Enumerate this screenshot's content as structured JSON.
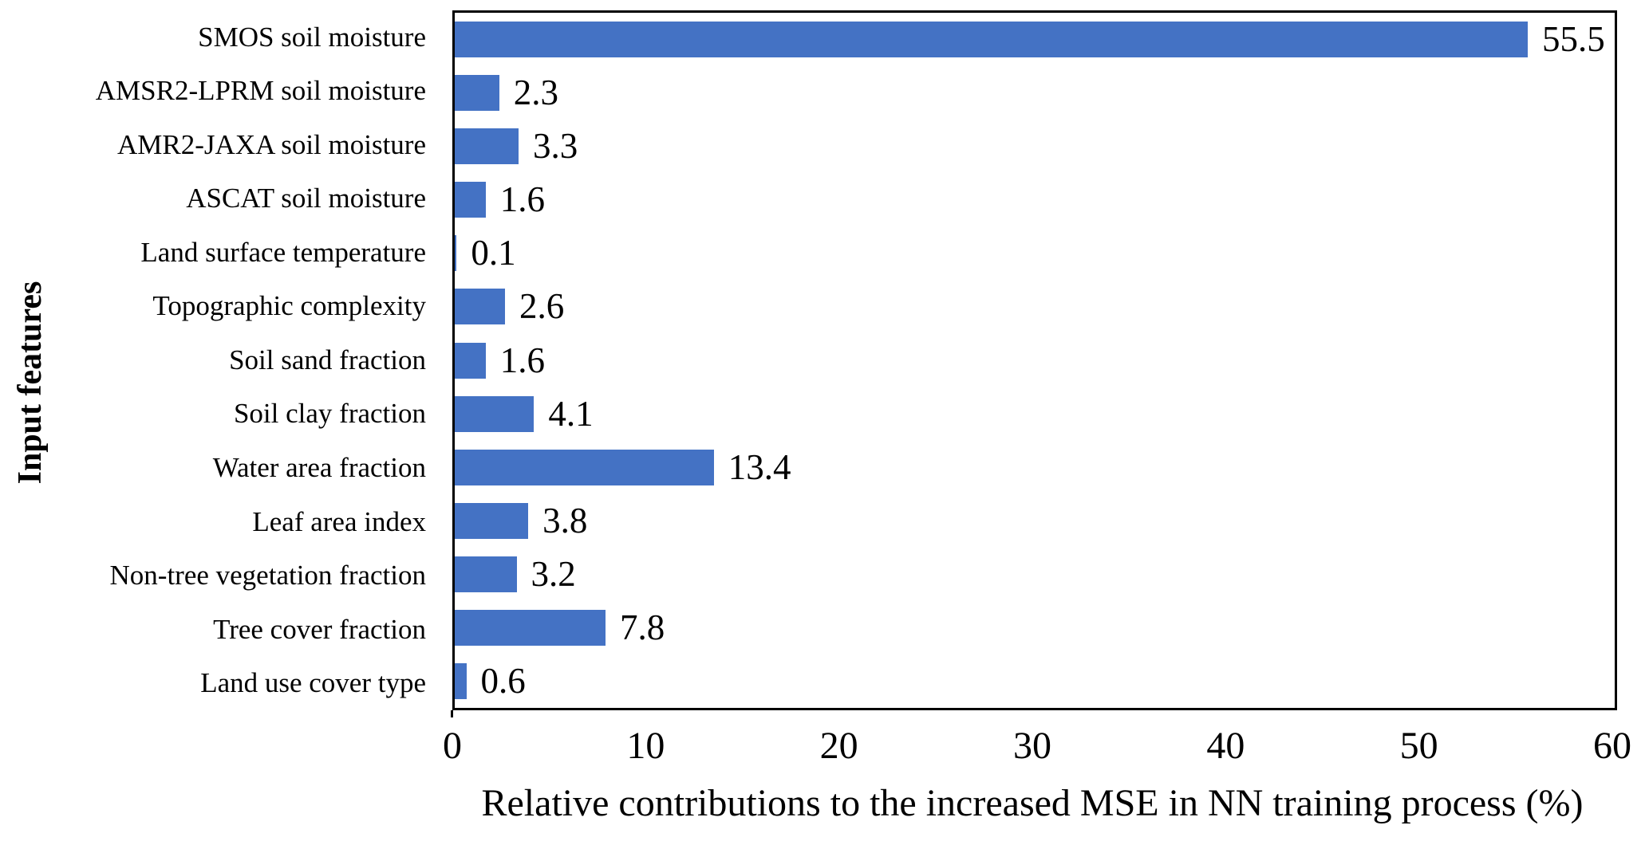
{
  "chart_data": {
    "type": "bar",
    "orientation": "horizontal",
    "title": "",
    "xlabel": "Relative contributions to the increased MSE in NN training process (%)",
    "ylabel": "Input features",
    "categories": [
      "SMOS soil moisture",
      "AMSR2-LPRM soil moisture",
      "AMR2-JAXA soil moisture",
      "ASCAT soil moisture",
      "Land surface temperature",
      "Topographic complexity",
      "Soil sand fraction",
      "Soil clay fraction",
      "Water area fraction",
      "Leaf area index",
      "Non-tree vegetation fraction",
      "Tree cover fraction",
      "Land use cover type"
    ],
    "values": [
      55.5,
      2.3,
      3.3,
      1.6,
      0.1,
      2.6,
      1.6,
      4.1,
      13.4,
      3.8,
      3.2,
      7.8,
      0.6
    ],
    "value_labels": [
      "55.5",
      "2.3",
      "3.3",
      "1.6",
      "0.1",
      "2.6",
      "1.6",
      "4.1",
      "13.4",
      "3.8",
      "3.2",
      "7.8",
      "0.6"
    ],
    "xlim": [
      0,
      60
    ],
    "xticks": [
      0,
      10,
      20,
      30,
      40,
      50,
      60
    ],
    "bar_color": "#4472C4",
    "axis_color": "#000000",
    "background_color": "#FFFFFF",
    "grid": false,
    "legend": "none"
  }
}
